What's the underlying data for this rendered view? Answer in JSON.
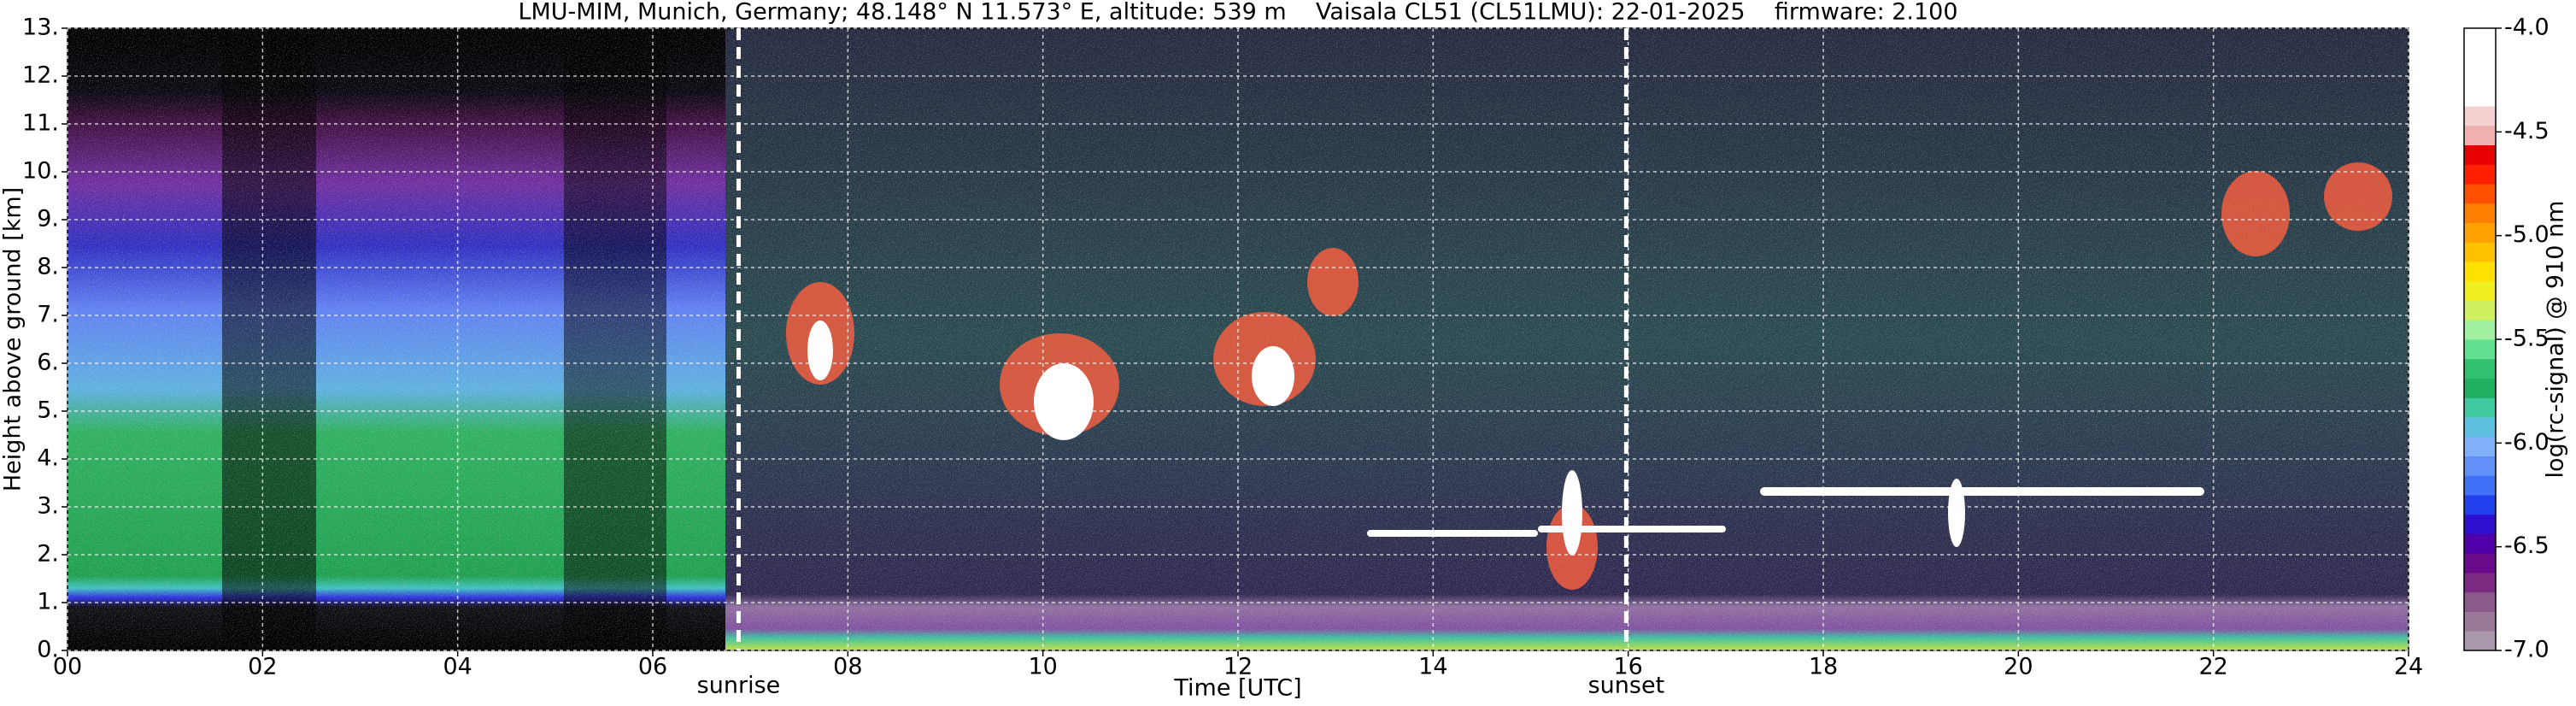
{
  "chart_data": {
    "type": "heatmap",
    "title": "LMU-MIM, Munich, Germany; 48.148° N 11.573° E, altitude: 539 m    Vaisala CL51 (CL51LMU): 22-01-2025    firmware: 2.100",
    "xlabel": "Time [UTC]",
    "ylabel": "Height above ground [km]",
    "xlim": [
      0,
      24
    ],
    "xticks": [
      {
        "value": 0,
        "label": "00"
      },
      {
        "value": 2,
        "label": "02"
      },
      {
        "value": 4,
        "label": "04"
      },
      {
        "value": 6,
        "label": "06"
      },
      {
        "value": 8,
        "label": "08"
      },
      {
        "value": 10,
        "label": "10"
      },
      {
        "value": 12,
        "label": "12"
      },
      {
        "value": 14,
        "label": "14"
      },
      {
        "value": 16,
        "label": "16"
      },
      {
        "value": 18,
        "label": "18"
      },
      {
        "value": 20,
        "label": "20"
      },
      {
        "value": 22,
        "label": "22"
      },
      {
        "value": 24,
        "label": "24"
      }
    ],
    "ylim": [
      0,
      13
    ],
    "yticks": [
      {
        "value": 0,
        "label": "0."
      },
      {
        "value": 1,
        "label": "1."
      },
      {
        "value": 2,
        "label": "2."
      },
      {
        "value": 3,
        "label": "3."
      },
      {
        "value": 4,
        "label": "4."
      },
      {
        "value": 5,
        "label": "5."
      },
      {
        "value": 6,
        "label": "6."
      },
      {
        "value": 7,
        "label": "7."
      },
      {
        "value": 8,
        "label": "8."
      },
      {
        "value": 9,
        "label": "9."
      },
      {
        "value": 10,
        "label": "10."
      },
      {
        "value": 11,
        "label": "11."
      },
      {
        "value": 12,
        "label": "12."
      },
      {
        "value": 13,
        "label": "13."
      }
    ],
    "grid": true,
    "annotations": [
      {
        "text": "sunrise",
        "x": 6.88
      },
      {
        "text": "sunset",
        "x": 15.98
      }
    ],
    "colorbar": {
      "label": "log(rc-signal) @ 910 nm",
      "lim": [
        -7.0,
        -4.0
      ],
      "ticks": [
        {
          "value": -7.0,
          "label": "-7.0"
        },
        -6.5,
        {
          "value": -6.0,
          "label": "-6.0"
        },
        -5.5,
        {
          "value": -5.0,
          "label": "-5.0"
        },
        -4.5,
        {
          "value": -4.0,
          "label": "-4.0"
        }
      ],
      "colors": [
        "#a898aa",
        "#987a98",
        "#8a5a8a",
        "#7a2a80",
        "#6a0a8a",
        "#5000a8",
        "#3010d0",
        "#2040f0",
        "#4070f8",
        "#6090f8",
        "#80b0f8",
        "#60c0e0",
        "#40c8a0",
        "#20b060",
        "#30c070",
        "#60e090",
        "#a0f0a0",
        "#d0f060",
        "#f0f020",
        "#ffe000",
        "#ffc000",
        "#ffa000",
        "#ff8000",
        "#ff5000",
        "#ff2000",
        "#e80000",
        "#f0b0b0",
        "#f4d0d0",
        "#ffffff",
        "#ffffff",
        "#ffffff",
        "#ffffff"
      ]
    }
  }
}
